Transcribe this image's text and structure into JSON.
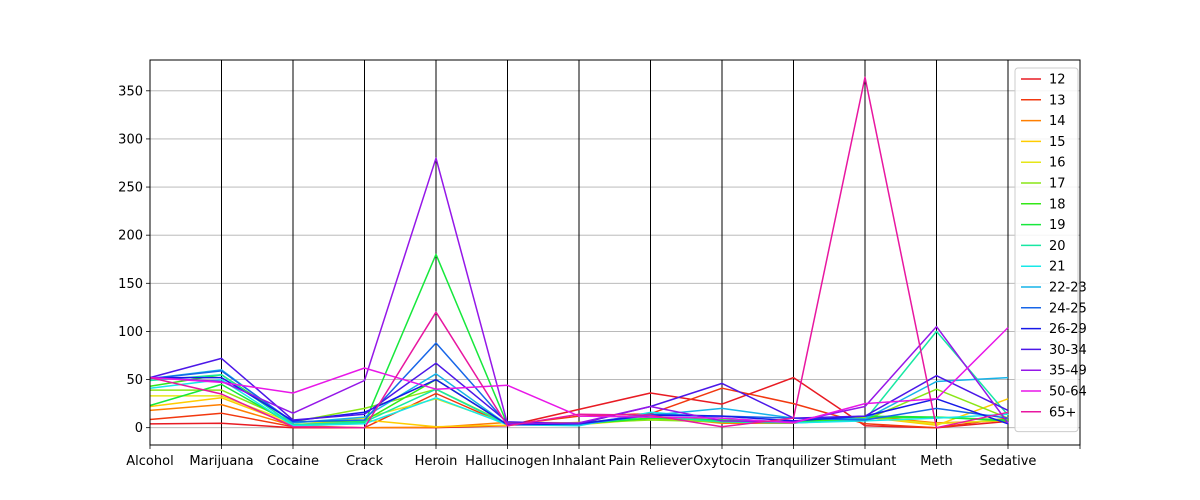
{
  "chart_data": {
    "type": "line",
    "title": "",
    "xlabel": "",
    "ylabel": "",
    "categories": [
      "Alcohol",
      "Marijuana",
      "Cocaine",
      "Crack",
      "Heroin",
      "Hallucinogen",
      "Inhalant",
      "Pain Reliever",
      "Oxytocin",
      "Tranquilizer",
      "Stimulant",
      "Meth",
      "Sedative"
    ],
    "yticks": [
      0,
      50,
      100,
      150,
      200,
      250,
      300,
      350
    ],
    "ylim": [
      -18,
      382
    ],
    "grid": "horizontal and vertical",
    "legend_position": "right",
    "series": [
      {
        "name": "12",
        "color": "#e81b23",
        "values": [
          3.9,
          4.5,
          0,
          0,
          0.1,
          2,
          19,
          36,
          24.5,
          52,
          2,
          0,
          6.5
        ]
      },
      {
        "name": "13",
        "color": "#f2380f",
        "values": [
          8.5,
          15,
          1,
          0,
          35.5,
          3,
          12,
          14.5,
          41,
          25,
          4,
          0,
          10
        ]
      },
      {
        "name": "14",
        "color": "#ff7f00",
        "values": [
          18,
          24,
          2,
          0,
          0.5,
          5.5,
          5,
          12,
          4.5,
          4.5,
          12,
          5,
          7
        ]
      },
      {
        "name": "15",
        "color": "#ffcc00",
        "values": [
          22,
          31,
          3,
          8,
          1,
          2.5,
          5.5,
          10,
          7,
          6,
          11,
          2.5,
          30
        ]
      },
      {
        "name": "16",
        "color": "#e6e617",
        "values": [
          33,
          33,
          5,
          10,
          30,
          4,
          3,
          9,
          6,
          5,
          11,
          4,
          8
        ]
      },
      {
        "name": "17",
        "color": "#8ae617",
        "values": [
          39,
          39,
          6,
          20,
          40,
          4,
          5,
          8,
          6,
          5,
          8,
          40,
          10
        ]
      },
      {
        "name": "18",
        "color": "#33e817",
        "values": [
          43,
          55,
          6,
          7,
          50,
          3,
          3.5,
          10,
          8,
          5,
          10,
          11,
          8
        ]
      },
      {
        "name": "19",
        "color": "#17e83c",
        "values": [
          23,
          45,
          3,
          5,
          180,
          3,
          4,
          10,
          8,
          6,
          12,
          11,
          7
        ]
      },
      {
        "name": "20",
        "color": "#17e8a3",
        "values": [
          49,
          55,
          3,
          6,
          40,
          3,
          4,
          12,
          6,
          5,
          8,
          100,
          13
        ]
      },
      {
        "name": "21",
        "color": "#17e8e8",
        "values": [
          41,
          50,
          2,
          4,
          31,
          3,
          2,
          16,
          10,
          5,
          7,
          10,
          14
        ]
      },
      {
        "name": "22-23",
        "color": "#17b3e8",
        "values": [
          51,
          60,
          5,
          11,
          56,
          3,
          3,
          13,
          20,
          10,
          9,
          48,
          52
        ]
      },
      {
        "name": "24-25",
        "color": "#1766e8",
        "values": [
          51,
          59,
          6,
          8,
          88,
          4,
          4,
          14,
          12,
          10,
          8,
          20,
          10
        ]
      },
      {
        "name": "26-29",
        "color": "#1719e8",
        "values": [
          52,
          52,
          7,
          16,
          50,
          3,
          4,
          13,
          12,
          7,
          12,
          30,
          4
        ]
      },
      {
        "name": "30-34",
        "color": "#4c17e8",
        "values": [
          52,
          72,
          8,
          14,
          67,
          6,
          4,
          22,
          46,
          10,
          12,
          54,
          18
        ]
      },
      {
        "name": "35-49",
        "color": "#9517e8",
        "values": [
          52,
          48,
          15,
          49,
          280,
          4,
          5,
          22,
          7,
          6,
          22,
          105,
          5
        ]
      },
      {
        "name": "50-64",
        "color": "#e817e8",
        "values": [
          52,
          47,
          36,
          62,
          40,
          44,
          12,
          11,
          10,
          5,
          25,
          30,
          104
        ]
      },
      {
        "name": "65+",
        "color": "#e817a0",
        "values": [
          52,
          35,
          1,
          0,
          120,
          2,
          14,
          13,
          1,
          10,
          364,
          0,
          16
        ]
      }
    ]
  }
}
